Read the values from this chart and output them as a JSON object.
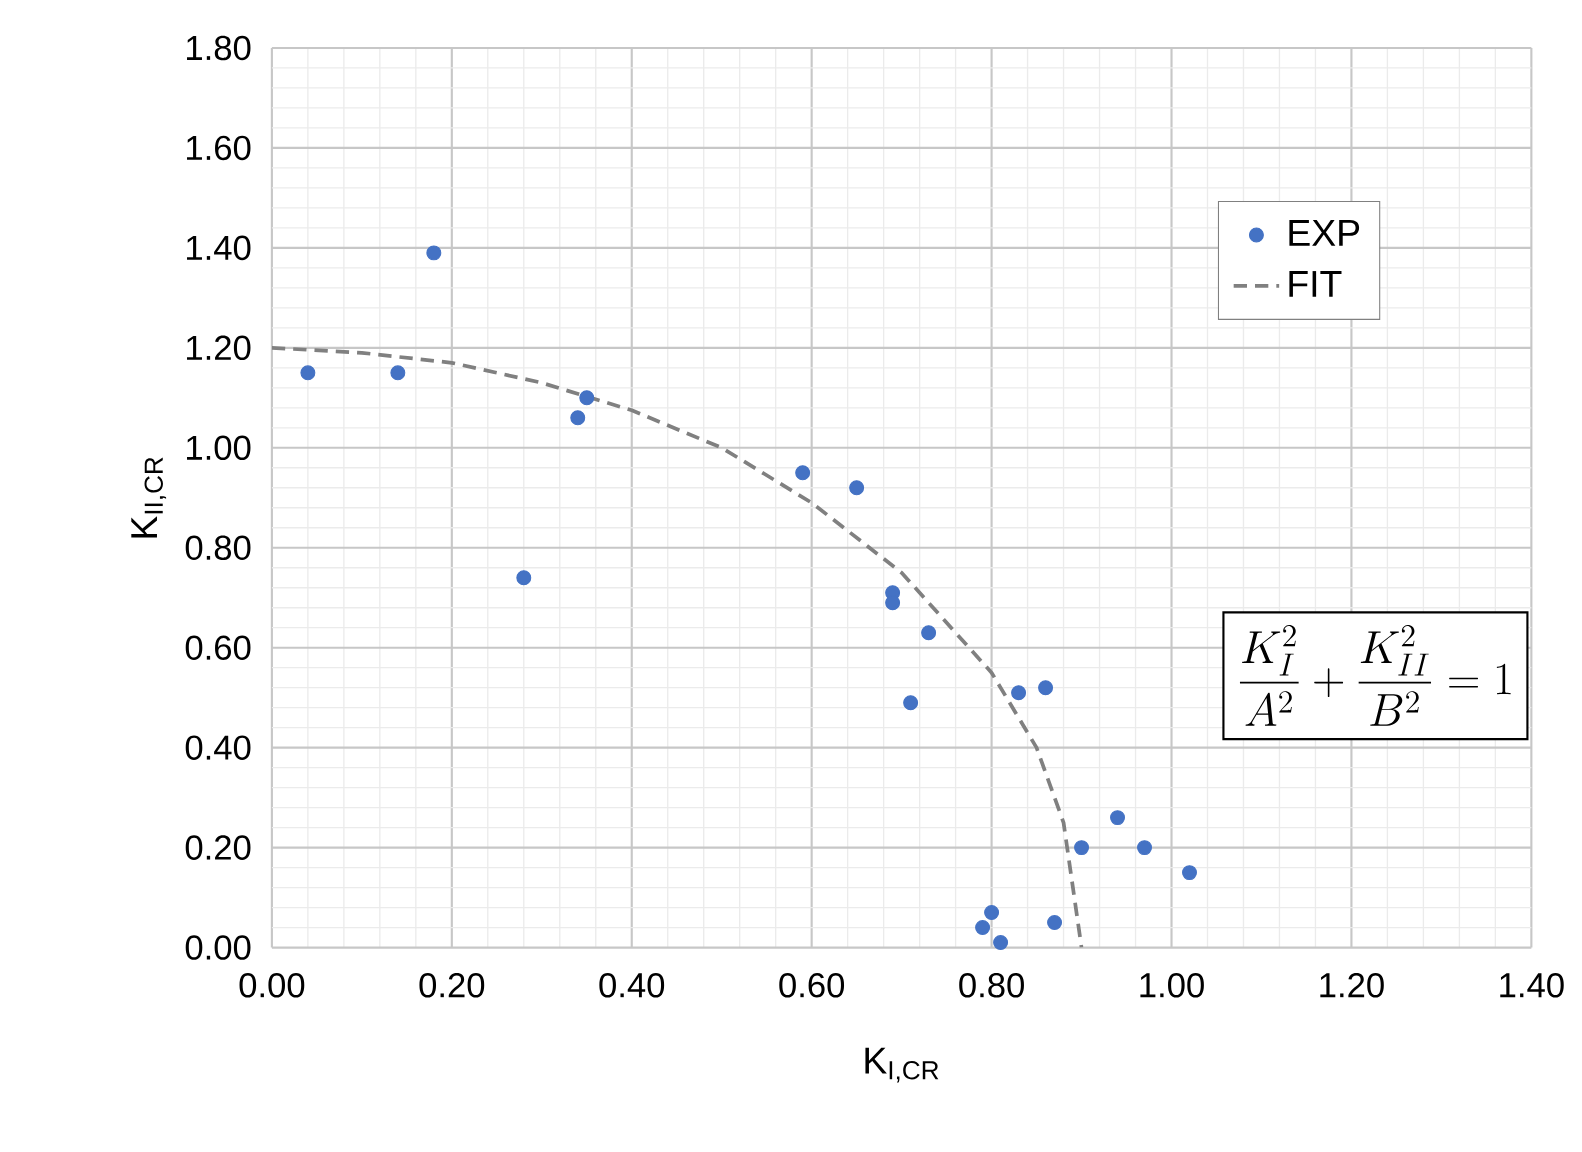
{
  "chart_data": {
    "type": "scatter",
    "xlabel": "K$_{I,CR}$",
    "ylabel": "K$_{II,CR}$",
    "series": [
      {
        "name": "EXP",
        "color": "#4472c4",
        "marker": "circle",
        "x": [
          0.04,
          0.14,
          0.18,
          0.35,
          0.34,
          0.28,
          0.59,
          0.65,
          0.69,
          0.69,
          0.73,
          0.71,
          0.83,
          0.86,
          0.94,
          0.9,
          0.97,
          1.02,
          0.8,
          0.79,
          0.81,
          0.87
        ],
        "values": [
          1.15,
          1.15,
          1.39,
          1.1,
          1.06,
          0.74,
          0.95,
          0.92,
          0.71,
          0.69,
          0.63,
          0.49,
          0.51,
          0.52,
          0.26,
          0.2,
          0.2,
          0.15,
          0.07,
          0.04,
          0.01,
          0.05
        ]
      },
      {
        "name": "FIT",
        "type": "line",
        "color": "#808080",
        "line_style": "dashed",
        "marker": "none",
        "x": [
          0,
          0.1,
          0.2,
          0.3,
          0.4,
          0.5,
          0.6,
          0.7,
          0.8,
          0.85,
          0.88,
          0.9
        ],
        "values": [
          1.2,
          1.19,
          1.17,
          1.13,
          1.075,
          1.0,
          0.89,
          0.75,
          0.55,
          0.4,
          0.25,
          0
        ]
      }
    ],
    "xlim": [
      0,
      1.4
    ],
    "ylim": [
      0,
      1.8
    ],
    "xticks": [
      {
        "value": 0,
        "label": "0.00"
      },
      {
        "value": 0.2,
        "label": "0.20"
      },
      {
        "value": 0.4,
        "label": "0.40"
      },
      {
        "value": 0.6,
        "label": "0.60"
      },
      {
        "value": 0.8,
        "label": "0.80"
      },
      {
        "value": 1.0,
        "label": "1.00"
      },
      {
        "value": 1.2,
        "label": "1.20"
      },
      {
        "value": 1.4,
        "label": "1.40"
      }
    ],
    "yticks": [
      {
        "value": 0,
        "label": "0.00"
      },
      {
        "value": 0.2,
        "label": "0.20"
      },
      {
        "value": 0.4,
        "label": "0.40"
      },
      {
        "value": 0.6,
        "label": "0.60"
      },
      {
        "value": 0.8,
        "label": "0.80"
      },
      {
        "value": 1.0,
        "label": "1.00"
      },
      {
        "value": 1.2,
        "label": "1.20"
      },
      {
        "value": 1.4,
        "label": "1.40"
      },
      {
        "value": 1.6,
        "label": "1.60"
      },
      {
        "value": 1.8,
        "label": "1.80"
      }
    ],
    "grid": true,
    "legend": "top right",
    "annotations": [
      "\\frac{K_I^2}{A^2}+\\frac{K_{II}^2}{B^2}=1"
    ]
  }
}
